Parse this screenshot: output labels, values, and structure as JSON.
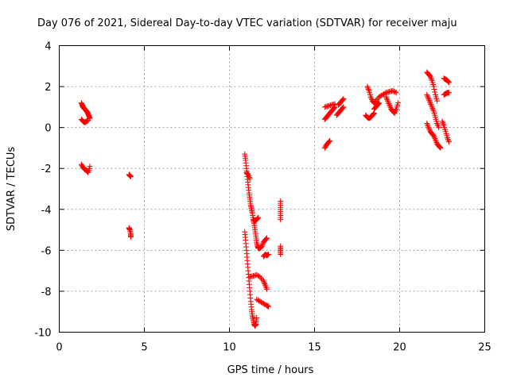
{
  "chart_data": {
    "type": "scatter",
    "title": "Day 076 of 2021, Sidereal Day-to-day VTEC variation (SDTVAR) for receiver maju",
    "xlabel": "GPS time / hours",
    "ylabel": "SDTVAR / TECUs",
    "xlim": [
      0,
      25
    ],
    "ylim": [
      -10,
      4
    ],
    "xticks": [
      "0",
      "5",
      "10",
      "15",
      "20",
      "25"
    ],
    "yticks": [
      "-10",
      "-8",
      "-6",
      "-4",
      "-2",
      "0",
      "2",
      "4"
    ],
    "grid": true,
    "marker": "plus",
    "color": "#ff0000",
    "series": [
      {
        "name": "SDTVAR",
        "segments": [
          {
            "x": [
              1.3,
              1.35,
              1.4,
              1.45,
              1.5,
              1.55,
              1.6,
              1.65,
              1.7,
              1.75,
              1.8
            ],
            "y": [
              1.2,
              1.1,
              1.0,
              0.95,
              0.9,
              0.85,
              0.8,
              0.75,
              0.65,
              0.55,
              0.45
            ]
          },
          {
            "x": [
              1.3,
              1.4,
              1.5,
              1.6,
              1.7
            ],
            "y": [
              0.4,
              0.3,
              0.25,
              0.3,
              0.35
            ]
          },
          {
            "x": [
              1.3,
              1.4,
              1.5,
              1.6,
              1.7,
              1.8
            ],
            "y": [
              -1.8,
              -1.95,
              -2.05,
              -2.1,
              -2.2,
              -1.9
            ]
          },
          {
            "x": [
              4.1,
              4.15,
              4.2
            ],
            "y": [
              -2.3,
              -2.35,
              -2.4
            ]
          },
          {
            "x": [
              4.1,
              4.15,
              4.2,
              4.2
            ],
            "y": [
              -4.9,
              -5.0,
              -5.2,
              -5.35
            ]
          },
          {
            "x": [
              10.9,
              10.95,
              11.0,
              11.05,
              11.1,
              11.15,
              11.2,
              11.25,
              11.3,
              11.35,
              11.4,
              11.45,
              11.5,
              11.55,
              11.6,
              11.65,
              11.7,
              11.8,
              11.9,
              12.0,
              12.1,
              12.2
            ],
            "y": [
              -1.3,
              -1.6,
              -2.0,
              -2.4,
              -2.8,
              -3.2,
              -3.5,
              -3.8,
              -4.0,
              -4.2,
              -4.5,
              -4.7,
              -5.0,
              -5.3,
              -5.6,
              -5.8,
              -5.9,
              -5.9,
              -5.8,
              -5.6,
              -5.5,
              -5.4
            ]
          },
          {
            "x": [
              11.4,
              11.5,
              11.6,
              11.7
            ],
            "y": [
              -4.5,
              -4.55,
              -4.5,
              -4.4
            ]
          },
          {
            "x": [
              11.0,
              11.1,
              11.2
            ],
            "y": [
              -2.2,
              -2.3,
              -2.5
            ]
          },
          {
            "x": [
              10.9,
              10.95,
              11.0,
              11.05,
              11.1,
              11.15,
              11.2,
              11.25,
              11.3,
              11.35,
              11.4,
              11.45,
              11.5,
              11.55,
              11.6
            ],
            "y": [
              -5.1,
              -5.5,
              -6.0,
              -6.5,
              -7.0,
              -7.5,
              -8.0,
              -8.5,
              -8.9,
              -9.2,
              -9.4,
              -9.6,
              -9.7,
              -9.6,
              -9.3
            ]
          },
          {
            "x": [
              11.2,
              11.4,
              11.6,
              11.8,
              12.0,
              12.1,
              12.2
            ],
            "y": [
              -7.3,
              -7.25,
              -7.2,
              -7.3,
              -7.5,
              -7.7,
              -7.9
            ]
          },
          {
            "x": [
              11.6,
              11.8,
              12.0,
              12.2,
              12.3
            ],
            "y": [
              -8.4,
              -8.5,
              -8.6,
              -8.7,
              -8.75
            ]
          },
          {
            "x": [
              12.0,
              12.1,
              12.2,
              12.3
            ],
            "y": [
              -6.3,
              -6.2,
              -6.25,
              -6.2
            ]
          },
          {
            "x": [
              13.0,
              13.0,
              13.0,
              13.0
            ],
            "y": [
              -3.6,
              -3.9,
              -4.2,
              -4.5
            ]
          },
          {
            "x": [
              13.0,
              13.0,
              13.0
            ],
            "y": [
              -5.8,
              -6.0,
              -6.2
            ]
          },
          {
            "x": [
              15.6,
              15.7,
              15.8,
              15.9,
              16.0,
              16.1,
              16.2
            ],
            "y": [
              0.4,
              0.5,
              0.6,
              0.7,
              0.8,
              0.9,
              1.0
            ]
          },
          {
            "x": [
              15.6,
              15.8,
              16.0,
              16.2
            ],
            "y": [
              1.0,
              1.05,
              1.1,
              1.15
            ]
          },
          {
            "x": [
              15.6,
              15.7,
              15.8,
              15.9
            ],
            "y": [
              -1.0,
              -0.85,
              -0.75,
              -0.65
            ]
          },
          {
            "x": [
              16.3,
              16.4,
              16.5,
              16.6,
              16.7
            ],
            "y": [
              0.6,
              0.7,
              0.8,
              0.9,
              1.0
            ]
          },
          {
            "x": [
              16.4,
              16.5,
              16.6,
              16.7
            ],
            "y": [
              1.1,
              1.2,
              1.3,
              1.4
            ]
          },
          {
            "x": [
              18.0,
              18.1,
              18.2,
              18.3,
              18.4,
              18.5
            ],
            "y": [
              0.6,
              0.5,
              0.45,
              0.5,
              0.6,
              0.7
            ]
          },
          {
            "x": [
              18.1,
              18.2,
              18.3,
              18.4,
              18.5,
              18.6,
              18.8,
              19.0,
              19.2,
              19.4,
              19.6,
              19.8
            ],
            "y": [
              2.0,
              1.8,
              1.5,
              1.3,
              1.2,
              1.3,
              1.5,
              1.6,
              1.7,
              1.75,
              1.8,
              1.7
            ]
          },
          {
            "x": [
              18.5,
              18.6,
              18.7,
              18.8
            ],
            "y": [
              0.9,
              1.0,
              1.1,
              1.2
            ]
          },
          {
            "x": [
              19.2,
              19.3,
              19.4,
              19.5,
              19.6,
              19.7,
              19.8,
              19.9
            ],
            "y": [
              1.5,
              1.3,
              1.1,
              0.9,
              0.8,
              0.7,
              0.9,
              1.2
            ]
          },
          {
            "x": [
              21.6,
              21.7,
              21.8,
              21.9,
              22.0,
              22.1,
              22.2
            ],
            "y": [
              2.7,
              2.6,
              2.5,
              2.3,
              2.0,
              1.6,
              1.3
            ]
          },
          {
            "x": [
              21.6,
              21.7,
              21.8,
              21.9,
              22.0,
              22.1,
              22.2,
              22.3
            ],
            "y": [
              1.6,
              1.4,
              1.2,
              1.0,
              0.8,
              0.5,
              0.2,
              0.0
            ]
          },
          {
            "x": [
              21.6,
              21.7,
              21.8,
              21.9,
              22.0,
              22.1,
              22.2,
              22.3,
              22.4
            ],
            "y": [
              0.2,
              0.0,
              -0.2,
              -0.3,
              -0.4,
              -0.6,
              -0.8,
              -0.9,
              -1.0
            ]
          },
          {
            "x": [
              22.6,
              22.7,
              22.8,
              22.9
            ],
            "y": [
              2.4,
              2.35,
              2.3,
              2.2
            ]
          },
          {
            "x": [
              22.6,
              22.7,
              22.8,
              22.9
            ],
            "y": [
              1.6,
              1.65,
              1.7,
              1.7
            ]
          },
          {
            "x": [
              22.5,
              22.6,
              22.7,
              22.8,
              22.9
            ],
            "y": [
              0.3,
              0.1,
              -0.2,
              -0.5,
              -0.7
            ]
          }
        ]
      }
    ]
  }
}
